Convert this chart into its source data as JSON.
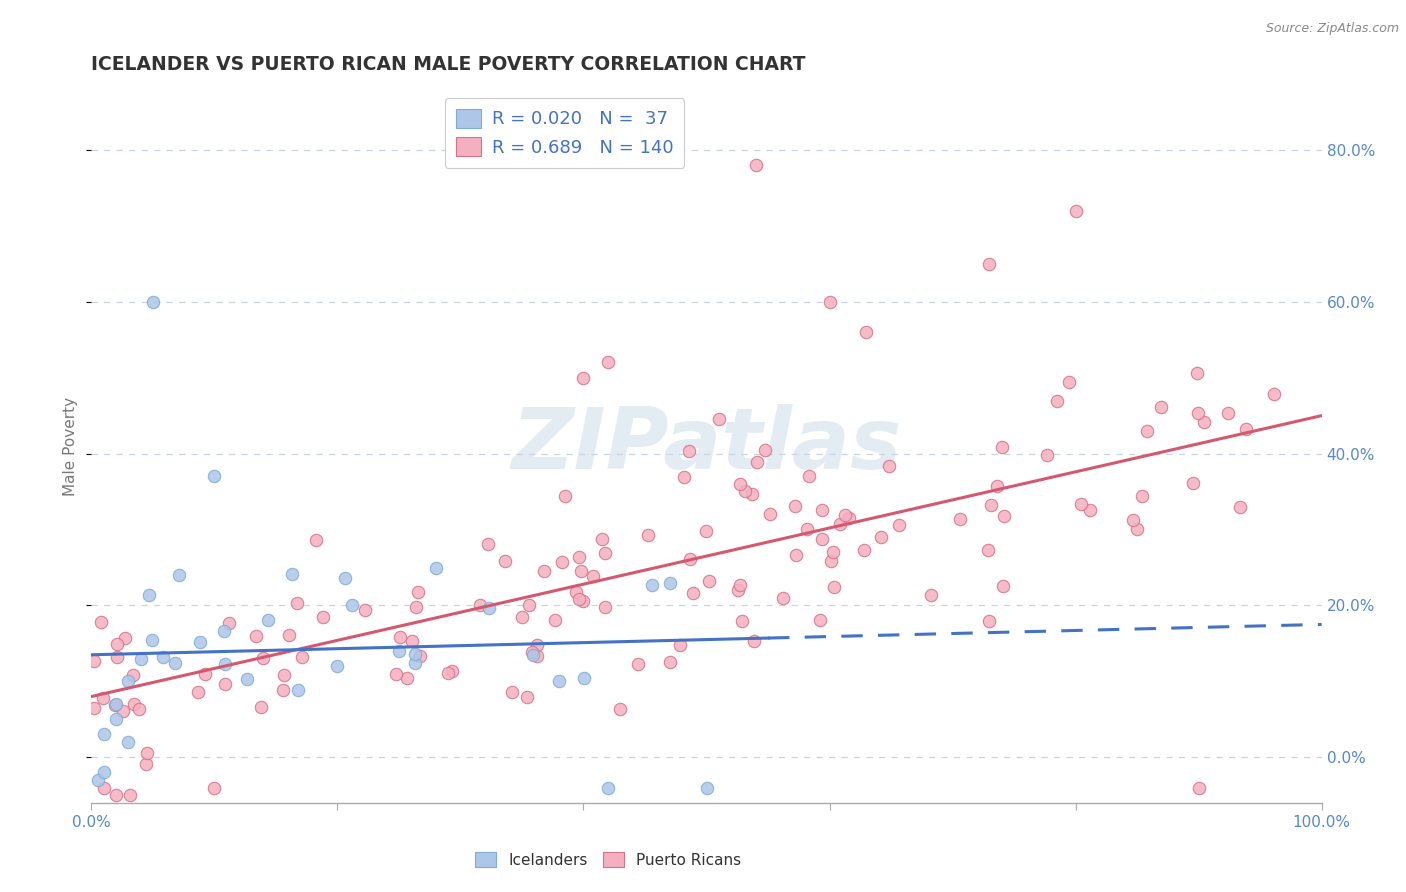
{
  "title": "ICELANDER VS PUERTO RICAN MALE POVERTY CORRELATION CHART",
  "source": "Source: ZipAtlas.com",
  "ylabel": "Male Poverty",
  "xlim": [
    0.0,
    1.0
  ],
  "ylim": [
    -0.06,
    0.88
  ],
  "x_ticks": [
    0.0,
    0.2,
    0.4,
    0.6,
    0.8,
    1.0
  ],
  "x_tick_labels": [
    "0.0%",
    "",
    "",
    "",
    "",
    "100.0%"
  ],
  "y_ticks_right": [
    0.0,
    0.2,
    0.4,
    0.6,
    0.8
  ],
  "iceland_color": "#aec6e8",
  "iceland_edge": "#7badd6",
  "iceland_line_color": "#4472c4",
  "pr_color": "#f4b0c0",
  "pr_edge": "#d87088",
  "pr_line_color": "#d45870",
  "iceland_R": "0.020",
  "iceland_N": "37",
  "pr_R": "0.689",
  "pr_N": "140",
  "legend_label_1": "Icelanders",
  "legend_label_2": "Puerto Ricans",
  "watermark": "ZIPatlas",
  "watermark_color": "#c8d8e8",
  "background_color": "#ffffff",
  "grid_color": "#c8d4e0",
  "axis_color": "#5588cc",
  "title_color": "#333333",
  "source_color": "#888888",
  "ice_line_solid_end": 0.55,
  "ice_line_start_y": 0.135,
  "ice_line_end_y": 0.175,
  "pr_line_start_y": 0.08,
  "pr_line_end_y": 0.45
}
